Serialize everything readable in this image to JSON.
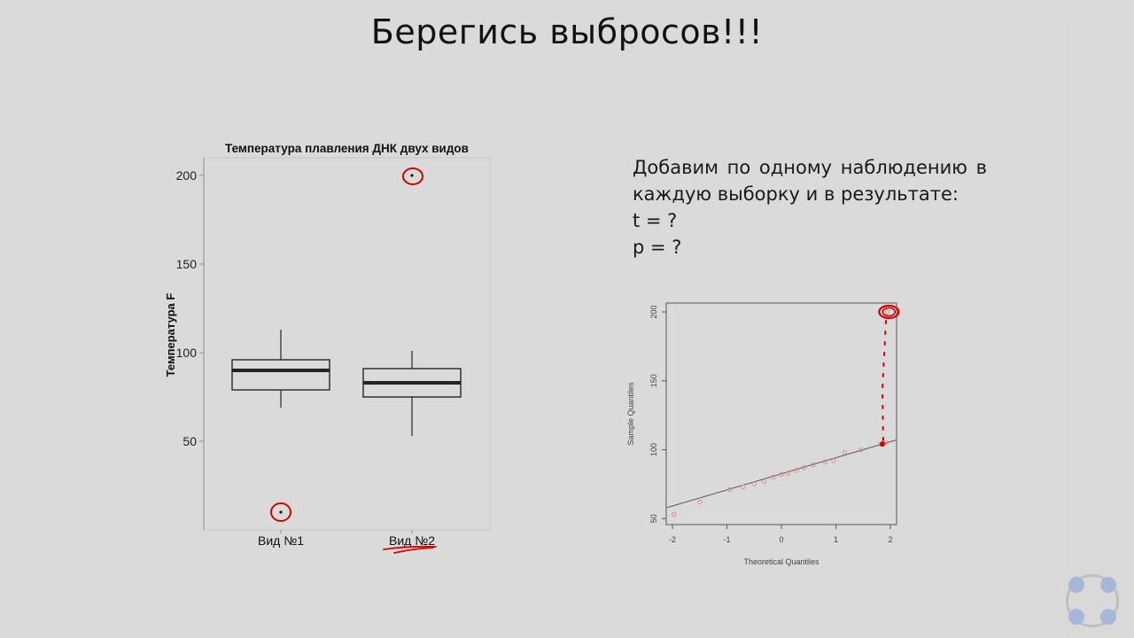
{
  "slide": {
    "title": "Берегись выбросов!!!",
    "question_lines": [
      "Добавим по одному наблюдению в",
      "каждую выборку и в результате:",
      "t = ?",
      "p = ?"
    ]
  },
  "chart_data": [
    {
      "type": "boxplot",
      "title": "Температура плавления ДНК двух видов",
      "xlabel": "",
      "ylabel": "Температура F",
      "categories": [
        "Вид №1",
        "Вид №2"
      ],
      "ylim": [
        0,
        210
      ],
      "yticks": [
        50,
        100,
        150,
        200
      ],
      "boxes": [
        {
          "name": "Вид №1",
          "whisker_low": 69,
          "q1": 79,
          "median": 90,
          "q3": 96,
          "whisker_high": 113,
          "outliers": [
            10
          ]
        },
        {
          "name": "Вид №2",
          "whisker_low": 53,
          "q1": 75,
          "median": 83,
          "q3": 91,
          "whisker_high": 101,
          "outliers": [
            200
          ]
        }
      ],
      "annotations": [
        {
          "type": "circle",
          "target": "outlier",
          "category": "Вид №1",
          "value": 10,
          "color": "#d40000"
        },
        {
          "type": "circle",
          "target": "outlier",
          "category": "Вид №2",
          "value": 200,
          "color": "#d40000"
        },
        {
          "type": "underline",
          "target": "category-label",
          "category": "Вид №2",
          "color": "#d40000"
        }
      ],
      "grid": false,
      "legend": "none"
    },
    {
      "type": "scatter",
      "title": "",
      "xlabel": "Theoretical Quantiles",
      "ylabel": "Sample Quantiles",
      "xlim": [
        -2.1,
        2.1
      ],
      "ylim": [
        46,
        204
      ],
      "xticks": [
        -2,
        -1,
        0,
        1,
        2
      ],
      "yticks": [
        50,
        100,
        150,
        200
      ],
      "points": {
        "x": [
          -1.97,
          -1.5,
          -0.95,
          -0.7,
          -0.5,
          -0.32,
          -0.15,
          0.0,
          0.12,
          0.28,
          0.42,
          0.58,
          0.8,
          0.96,
          1.16,
          1.46,
          1.82,
          1.92,
          1.94
        ],
        "y": [
          53,
          62,
          71,
          73,
          75,
          77,
          80,
          82,
          83,
          85,
          87,
          89,
          91,
          92,
          98,
          100,
          104,
          105,
          200
        ]
      },
      "reference_line": {
        "x": [
          -2.1,
          2.1
        ],
        "y": [
          58,
          107
        ]
      },
      "point_color": "#e08c8c",
      "line_color": "#555555",
      "annotations": [
        {
          "type": "circle",
          "target": "point",
          "x": 1.94,
          "y": 200,
          "color": "#d40000"
        },
        {
          "type": "dotted-arrow",
          "from": {
            "x": 1.94,
            "y": 193
          },
          "to": {
            "x": 1.9,
            "y": 106
          },
          "color": "#d40000"
        }
      ],
      "grid": false,
      "legend": "none"
    }
  ],
  "colors": {
    "background": "#d9d9d9",
    "annotation_red": "#d40000",
    "nav_dot": "#a7b7d8"
  },
  "icons": [
    "slide-navigation-icon"
  ]
}
